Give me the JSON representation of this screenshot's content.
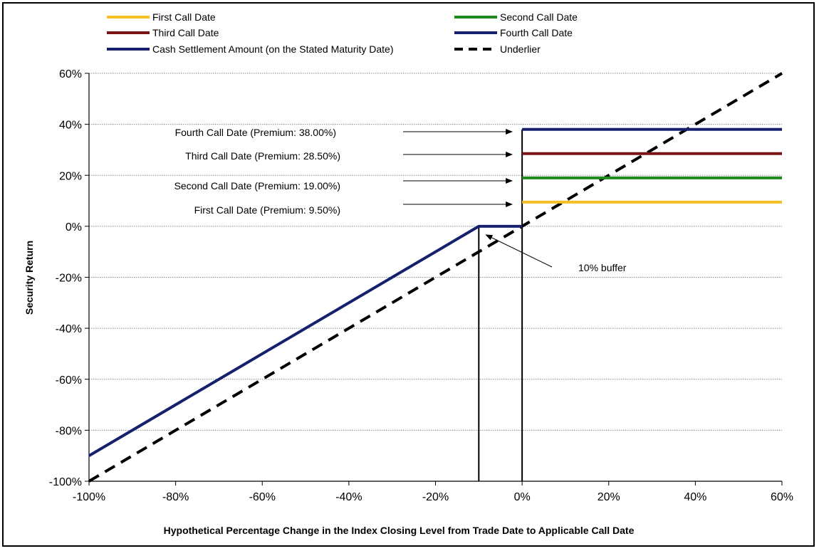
{
  "chart_data": {
    "type": "line",
    "xlabel": "Hypothetical Percentage Change in the Index Closing Level from Trade Date to Applicable Call Date",
    "ylabel": "Security Return",
    "xlim": [
      -100,
      60
    ],
    "ylim": [
      -100,
      60
    ],
    "x_ticks": [
      -100,
      -80,
      -60,
      -40,
      -20,
      0,
      20,
      40,
      60
    ],
    "y_ticks": [
      -100,
      -80,
      -60,
      -40,
      -20,
      0,
      20,
      40,
      60
    ],
    "x_tick_labels": [
      "-100%",
      "-80%",
      "-60%",
      "-40%",
      "-20%",
      "0%",
      "20%",
      "40%",
      "60%"
    ],
    "y_tick_labels": [
      "-100%",
      "-80%",
      "-60%",
      "-40%",
      "-20%",
      "0%",
      "20%",
      "40%",
      "60%"
    ],
    "grid": "horizontal dotted",
    "legend_position": "top",
    "series": [
      {
        "name": "First Call Date",
        "color": "#F5C023",
        "style": "solid",
        "points": [
          [
            0,
            9.5
          ],
          [
            60,
            9.5
          ]
        ]
      },
      {
        "name": "Second Call Date",
        "color": "#1E8A1E",
        "style": "solid",
        "points": [
          [
            0,
            19
          ],
          [
            60,
            19
          ]
        ]
      },
      {
        "name": "Third Call Date",
        "color": "#7B1414",
        "style": "solid",
        "points": [
          [
            0,
            28.5
          ],
          [
            60,
            28.5
          ]
        ]
      },
      {
        "name": "Fourth Call Date",
        "color": "#16216E",
        "style": "solid",
        "points": [
          [
            0,
            38
          ],
          [
            60,
            38
          ]
        ]
      },
      {
        "name": "Cash Settlement Amount (on the Stated Maturity Date)",
        "color": "#16216E",
        "style": "solid",
        "points": [
          [
            -100,
            -90
          ],
          [
            -10,
            0
          ],
          [
            0,
            0
          ]
        ]
      },
      {
        "name": "Underlier",
        "color": "#000000",
        "style": "dashed",
        "points": [
          [
            -100,
            -100
          ],
          [
            60,
            60
          ]
        ]
      }
    ],
    "reference_lines": [
      {
        "x": -10
      },
      {
        "x": 0
      }
    ],
    "annotations": [
      {
        "text": "Fourth Call Date (Premium: 38.00%)",
        "target": [
          0,
          38
        ]
      },
      {
        "text": "Third Call Date (Premium: 28.50%)",
        "target": [
          0,
          28.5
        ]
      },
      {
        "text": "Second Call  Date (Premium: 19.00%)",
        "target": [
          0,
          19
        ]
      },
      {
        "text": "First Call  Date (Premium: 9.50%)",
        "target": [
          0,
          9.5
        ]
      },
      {
        "text": "10% buffer",
        "target": [
          -10,
          0
        ]
      }
    ]
  }
}
